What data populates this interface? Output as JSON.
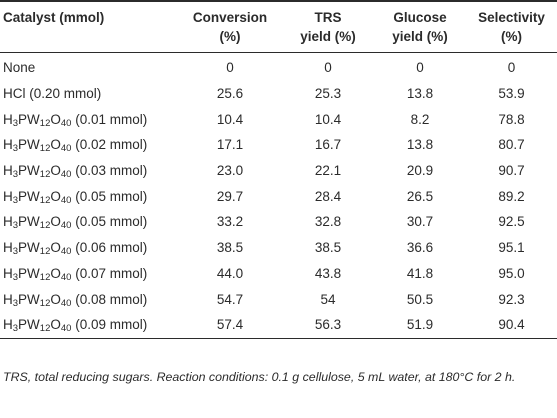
{
  "table": {
    "headers": [
      {
        "line1": "Catalyst (mmol)",
        "line2": ""
      },
      {
        "line1": "Conversion",
        "line2": "(%)"
      },
      {
        "line1": "TRS",
        "line2": "yield (%)"
      },
      {
        "line1": "Glucose",
        "line2": "yield (%)"
      },
      {
        "line1": "Selectivity",
        "line2": "(%)"
      }
    ],
    "rows": [
      {
        "catalyst": {
          "formula": false,
          "text": "None"
        },
        "conversion": "0",
        "trs_yield": "0",
        "glucose_yield": "0",
        "selectivity": "0"
      },
      {
        "catalyst": {
          "formula": false,
          "text": "HCl (0.20 mmol)"
        },
        "conversion": "25.6",
        "trs_yield": "25.3",
        "glucose_yield": "13.8",
        "selectivity": "53.9"
      },
      {
        "catalyst": {
          "formula": true,
          "h": "H",
          "h_sub": "3",
          "pw": "PW",
          "pw_sub": "12",
          "o": "O",
          "o_sub": "40",
          "amount": " (0.01 mmol)"
        },
        "conversion": "10.4",
        "trs_yield": "10.4",
        "glucose_yield": "8.2",
        "selectivity": "78.8"
      },
      {
        "catalyst": {
          "formula": true,
          "h": "H",
          "h_sub": "3",
          "pw": "PW",
          "pw_sub": "12",
          "o": "O",
          "o_sub": "40",
          "amount": " (0.02 mmol)"
        },
        "conversion": "17.1",
        "trs_yield": "16.7",
        "glucose_yield": "13.8",
        "selectivity": "80.7"
      },
      {
        "catalyst": {
          "formula": true,
          "h": "H",
          "h_sub": "3",
          "pw": "PW",
          "pw_sub": "12",
          "o": "O",
          "o_sub": "40",
          "amount": " (0.03 mmol)"
        },
        "conversion": "23.0",
        "trs_yield": "22.1",
        "glucose_yield": "20.9",
        "selectivity": "90.7"
      },
      {
        "catalyst": {
          "formula": true,
          "h": "H",
          "h_sub": "3",
          "pw": "PW",
          "pw_sub": "12",
          "o": "O",
          "o_sub": "40",
          "amount": " (0.05 mmol)"
        },
        "conversion": "29.7",
        "trs_yield": "28.4",
        "glucose_yield": "26.5",
        "selectivity": "89.2"
      },
      {
        "catalyst": {
          "formula": true,
          "h": "H",
          "h_sub": "3",
          "pw": "PW",
          "pw_sub": "12",
          "o": "O",
          "o_sub": "40",
          "amount": " (0.05 mmol)"
        },
        "conversion": "33.2",
        "trs_yield": "32.8",
        "glucose_yield": "30.7",
        "selectivity": "92.5"
      },
      {
        "catalyst": {
          "formula": true,
          "h": "H",
          "h_sub": "3",
          "pw": "PW",
          "pw_sub": "12",
          "o": "O",
          "o_sub": "40",
          "amount": " (0.06 mmol)"
        },
        "conversion": "38.5",
        "trs_yield": "38.5",
        "glucose_yield": "36.6",
        "selectivity": "95.1"
      },
      {
        "catalyst": {
          "formula": true,
          "h": "H",
          "h_sub": "3",
          "pw": "PW",
          "pw_sub": "12",
          "o": "O",
          "o_sub": "40",
          "amount": " (0.07 mmol)"
        },
        "conversion": "44.0",
        "trs_yield": "43.8",
        "glucose_yield": "41.8",
        "selectivity": "95.0"
      },
      {
        "catalyst": {
          "formula": true,
          "h": "H",
          "h_sub": "3",
          "pw": "PW",
          "pw_sub": "12",
          "o": "O",
          "o_sub": "40",
          "amount": " (0.08 mmol)"
        },
        "conversion": "54.7",
        "trs_yield": "54",
        "glucose_yield": "50.5",
        "selectivity": "92.3"
      },
      {
        "catalyst": {
          "formula": true,
          "h": "H",
          "h_sub": "3",
          "pw": "PW",
          "pw_sub": "12",
          "o": "O",
          "o_sub": "40",
          "amount": " (0.09 mmol)"
        },
        "conversion": "57.4",
        "trs_yield": "56.3",
        "glucose_yield": "51.9",
        "selectivity": "90.4"
      }
    ]
  },
  "footnote": "TRS, total reducing sugars. Reaction conditions: 0.1 g cellulose, 5 mL water, at 180°C for 2 h."
}
